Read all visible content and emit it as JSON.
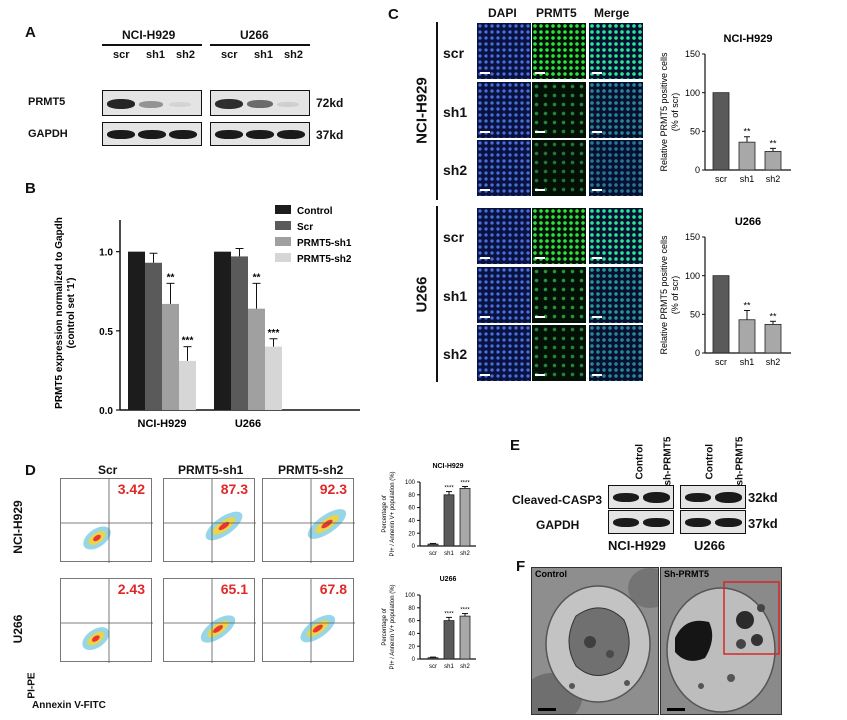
{
  "panelA": {
    "label": "A",
    "groups": [
      "NCI-H929",
      "U266"
    ],
    "lanes": [
      "scr",
      "sh1",
      "sh2",
      "scr",
      "sh1",
      "sh2"
    ],
    "rows": [
      {
        "name": "PRMT5",
        "size": "72kd",
        "intensity": [
          1.0,
          0.35,
          0.05,
          0.95,
          0.6,
          0.1
        ]
      },
      {
        "name": "GAPDH",
        "size": "37kd",
        "intensity": [
          1.0,
          1.0,
          1.0,
          1.0,
          1.0,
          1.0
        ]
      }
    ]
  },
  "panelB": {
    "label": "B",
    "ylabel_lines": [
      "PRMT5 expression  normalized to Gapdh",
      "(control set '1')"
    ],
    "legend": [
      "Control",
      "Scr",
      "PRMT5-sh1",
      "PRMT5-sh2"
    ],
    "colors": [
      "#1c1c1c",
      "#5a5a5a",
      "#a0a0a0",
      "#d6d6d6"
    ]
  },
  "panelC": {
    "label": "C",
    "columns": [
      "DAPI",
      "PRMT5",
      "Merge"
    ],
    "groups": [
      "NCI-H929",
      "U266"
    ],
    "rows": [
      "scr",
      "sh1",
      "sh2"
    ],
    "green_level": [
      [
        1.0,
        0.35,
        0.25
      ],
      [
        1.0,
        0.45,
        0.35
      ]
    ]
  },
  "panelD": {
    "label": "D",
    "columns": [
      "Scr",
      "PRMT5-sh1",
      "PRMT5-sh2"
    ],
    "rows": [
      "NCI-H929",
      "U266"
    ],
    "values": [
      [
        "3.42",
        "87.3",
        "92.3"
      ],
      [
        "2.43",
        "65.1",
        "67.8"
      ]
    ],
    "xaxis": "Annexin V-FITC",
    "yaxis": "PI-PE"
  },
  "panelE": {
    "label": "E",
    "groups": [
      "NCI-H929",
      "U266"
    ],
    "lanes": [
      "Control",
      "sh-PRMT5",
      "Control",
      "sh-PRMT5"
    ],
    "rows": [
      {
        "name": "Cleaved-CASP3",
        "size": "32kd"
      },
      {
        "name": "GAPDH",
        "size": "37kd"
      }
    ]
  },
  "panelF": {
    "label": "F",
    "images": [
      "Control",
      "Sh-PRMT5"
    ]
  },
  "chart_data": [
    {
      "id": "B",
      "type": "bar",
      "categories": [
        "NCI-H929",
        "U266"
      ],
      "series": [
        {
          "name": "Control",
          "values": [
            1.0,
            1.0
          ],
          "errors": [
            0,
            0
          ],
          "sig": [
            "",
            ""
          ]
        },
        {
          "name": "Scr",
          "values": [
            0.93,
            0.97
          ],
          "errors": [
            0.06,
            0.05
          ],
          "sig": [
            "",
            ""
          ]
        },
        {
          "name": "PRMT5-sh1",
          "values": [
            0.67,
            0.64
          ],
          "errors": [
            0.13,
            0.16
          ],
          "sig": [
            "**",
            "**"
          ]
        },
        {
          "name": "PRMT5-sh2",
          "values": [
            0.31,
            0.4
          ],
          "errors": [
            0.09,
            0.05
          ],
          "sig": [
            "***",
            "***"
          ]
        }
      ],
      "yticks": [
        "0.0",
        "0.5",
        "1.0"
      ],
      "ylim": [
        0,
        1.2
      ],
      "ylabel": "PRMT5 expression  normalized to Gapdh (control set '1')"
    },
    {
      "id": "C1",
      "type": "bar",
      "title": "NCI-H929",
      "categories": [
        "scr",
        "sh1",
        "sh2"
      ],
      "values": [
        100,
        36,
        24
      ],
      "errors": [
        0,
        7,
        4
      ],
      "sig": [
        "",
        "**",
        "**"
      ],
      "yticks": [
        "0",
        "50",
        "100",
        "150"
      ],
      "ylim": [
        0,
        150
      ],
      "ylabel_lines": [
        "Relative PRMT5 positive cells",
        "(% of scr)"
      ]
    },
    {
      "id": "C2",
      "type": "bar",
      "title": "U266",
      "categories": [
        "scr",
        "sh1",
        "sh2"
      ],
      "values": [
        100,
        43,
        37
      ],
      "errors": [
        0,
        12,
        4
      ],
      "sig": [
        "",
        "**",
        "**"
      ],
      "yticks": [
        "0",
        "50",
        "100",
        "150"
      ],
      "ylim": [
        0,
        150
      ],
      "ylabel_lines": [
        "Relative PRMT5 positive cells",
        "(% of scr)"
      ]
    },
    {
      "id": "D1",
      "type": "bar",
      "title": "NCI-H929",
      "categories": [
        "scr",
        "sh1",
        "sh2"
      ],
      "values": [
        3,
        80,
        90
      ],
      "errors": [
        1,
        5,
        3
      ],
      "sig": [
        "",
        "****",
        "****"
      ],
      "yticks": [
        "0",
        "20",
        "40",
        "60",
        "80",
        "100"
      ],
      "ylim": [
        0,
        100
      ],
      "ylabel_lines": [
        "Percentage of",
        "PI+ / Annexin V+ population (%)"
      ]
    },
    {
      "id": "D2",
      "type": "bar",
      "title": "U266",
      "categories": [
        "scr",
        "sh1",
        "sh2"
      ],
      "values": [
        2,
        60,
        67
      ],
      "errors": [
        1,
        5,
        4
      ],
      "sig": [
        "",
        "****",
        "****"
      ],
      "yticks": [
        "0",
        "20",
        "40",
        "60",
        "80",
        "100"
      ],
      "ylim": [
        0,
        100
      ],
      "ylabel_lines": [
        "Percentage of",
        "PI+ / Annexin V+ population (%)"
      ]
    }
  ]
}
